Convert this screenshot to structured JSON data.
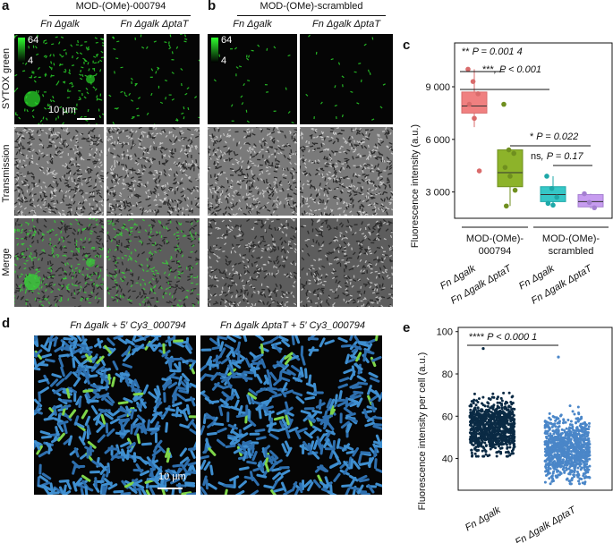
{
  "panel_a": {
    "label": "a",
    "condition": "MOD-(OMe)-000794",
    "col1": "Fn Δgalk",
    "col2": "Fn Δgalk ΔptaT",
    "rows": [
      "SYTOX green",
      "Transmission",
      "Merge"
    ],
    "colorbar_max": "64",
    "colorbar_min": "4",
    "scale": "10 μm"
  },
  "panel_b": {
    "label": "b",
    "condition": "MOD-(OMe)-scrambled",
    "col1": "Fn Δgalk",
    "col2": "Fn Δgalk ΔptaT",
    "colorbar_max": "64",
    "colorbar_min": "4"
  },
  "panel_c": {
    "label": "c"
  },
  "panel_d": {
    "label": "d",
    "title1": "Fn Δgalk + 5′ Cy3_000794",
    "title2": "Fn Δgalk ΔptaT + 5′ Cy3_000794",
    "scale": "10 μm"
  },
  "panel_e": {
    "label": "e"
  },
  "colors": {
    "galk_794": "#f08080",
    "ptaT_794": "#8db32a",
    "galk_scr": "#36c7c7",
    "ptaT_scr": "#c79cf0",
    "e_galk": "#0a2a44",
    "e_ptaT": "#4a86c8"
  },
  "chart_data": [
    {
      "type": "box",
      "ylabel": "Fluorescence intensity (a.u.)",
      "yticks": [
        "3 000",
        "6 000",
        "9 000"
      ],
      "ylim": [
        1500,
        11500
      ],
      "categories": [
        "Fn Δgalk",
        "Fn Δgalk ΔptaT",
        "Fn Δgalk",
        "Fn Δgalk ΔptaT"
      ],
      "groups": [
        "MOD-(OMe)-000794",
        "MOD-(OMe)-scrambled"
      ],
      "boxes": [
        {
          "q1": 7500,
          "median": 7900,
          "q3": 8700,
          "min": 6700,
          "max": 10000,
          "points": [
            10000,
            9300,
            8600,
            8000,
            7200,
            4200
          ]
        },
        {
          "q1": 3300,
          "median": 4100,
          "q3": 5400,
          "min": 2200,
          "max": 5500,
          "points": [
            8000,
            5400,
            5200,
            4400,
            3900,
            3100,
            2200
          ]
        },
        {
          "q1": 2450,
          "median": 2850,
          "q3": 3300,
          "min": 2250,
          "max": 3900,
          "points": [
            3900,
            3200,
            2700,
            2350,
            2250
          ]
        },
        {
          "q1": 2150,
          "median": 2450,
          "q3": 2850,
          "min": 2050,
          "max": 2900,
          "points": [
            2900,
            2400,
            2100
          ]
        }
      ],
      "annotations": [
        {
          "stars": "**",
          "text": "P = 0.001 4"
        },
        {
          "stars": "***",
          "text": ", P < 0.001"
        },
        {
          "stars": "*",
          "text": "P = 0.022"
        },
        {
          "stars": "ns",
          "text": ", P = 0.17"
        }
      ]
    },
    {
      "type": "scatter",
      "ylabel": "Fluorescence intensity per cell (a.u.)",
      "yticks": [
        "40",
        "60",
        "80",
        "100"
      ],
      "ylim": [
        25,
        102
      ],
      "categories": [
        "Fn Δgalk",
        "Fn Δgalk ΔptaT"
      ],
      "series": [
        {
          "category": "Fn Δgalk",
          "range": [
            41,
            92
          ],
          "center": 55,
          "spread": 6
        },
        {
          "category": "Fn Δgalk ΔptaT",
          "range": [
            28,
            88
          ],
          "center": 45,
          "spread": 7
        }
      ],
      "annotation": {
        "stars": "****",
        "text": "P < 0.000 1"
      }
    }
  ]
}
